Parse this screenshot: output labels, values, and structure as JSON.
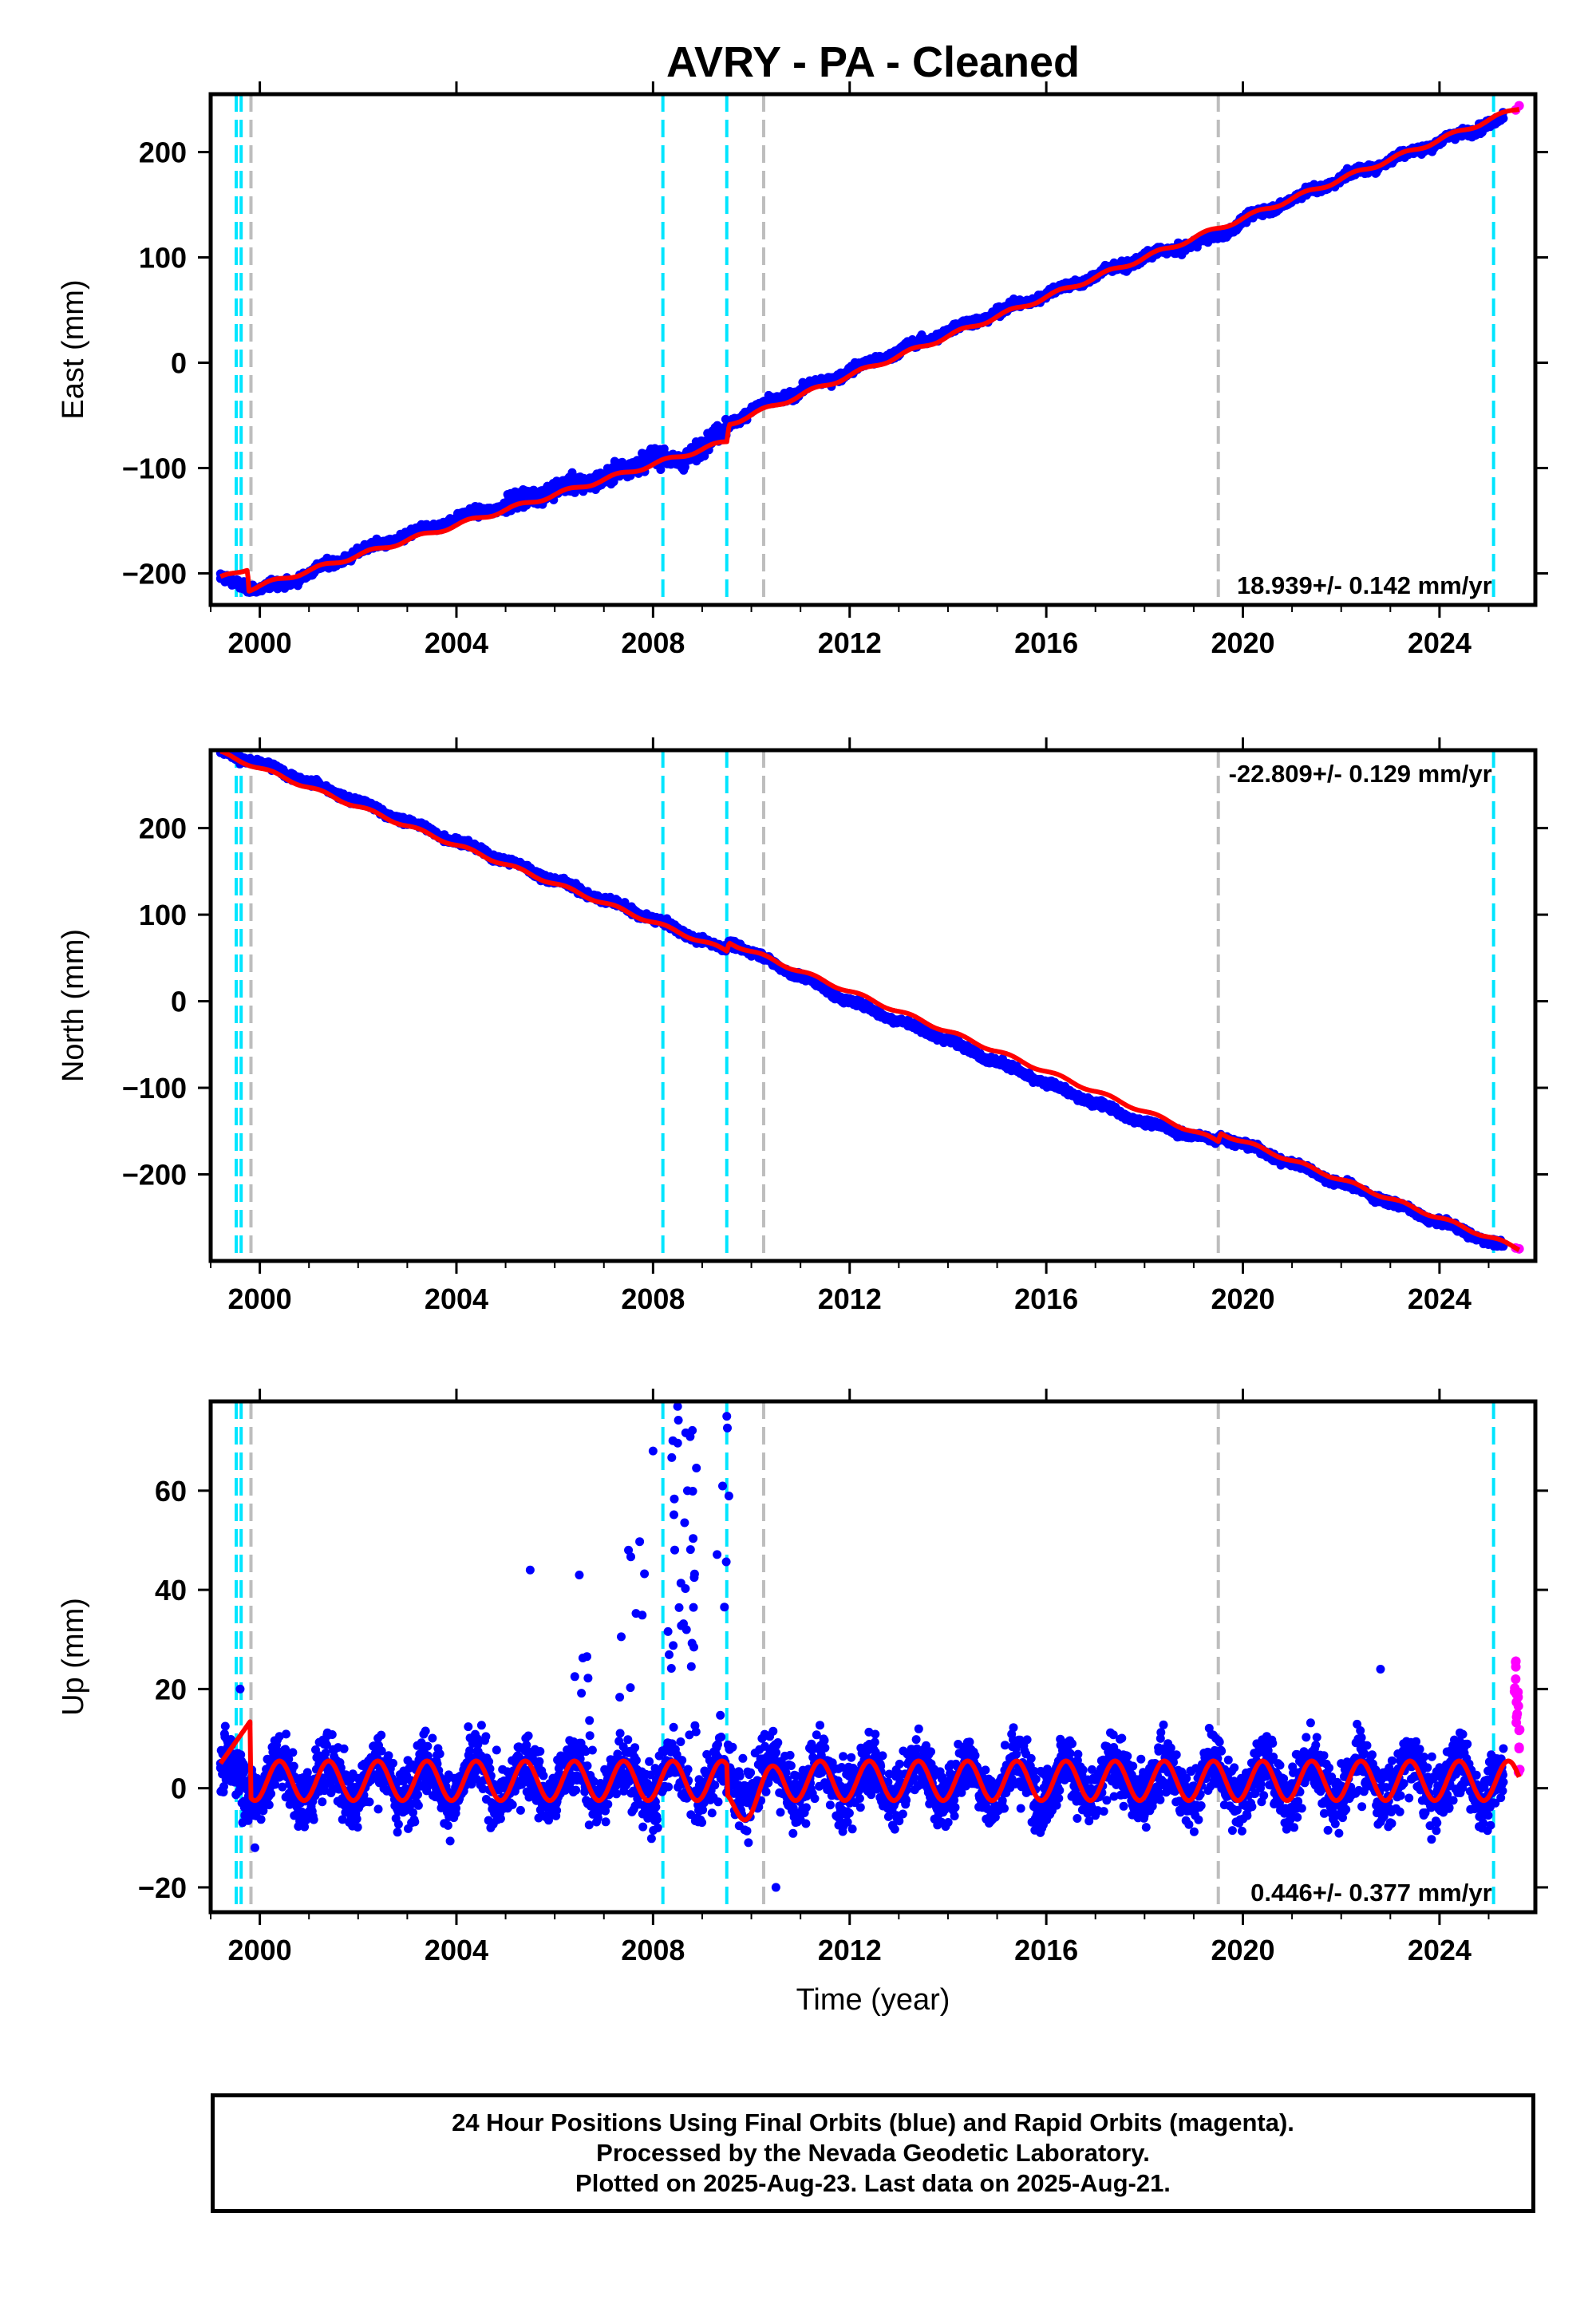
{
  "title": "AVRY  - PA - Cleaned",
  "colors": {
    "final_orbits": "#0000ff",
    "rapid_orbits": "#ff00ff",
    "model": "#ff0000",
    "equipment_change": "#00e5ff",
    "earthquake": "#bdbdbd"
  },
  "chart_data": [
    {
      "type": "scatter",
      "panel": "east",
      "ylabel": "East (mm)",
      "xlabel": "",
      "xlim": [
        1999.0,
        2025.95
      ],
      "ylim": [
        -230,
        255
      ],
      "x_ticks": [
        2000,
        2004,
        2008,
        2012,
        2016,
        2020,
        2024
      ],
      "y_ticks": [
        -200,
        -100,
        0,
        100,
        200
      ],
      "annotation": "18.939+/- 0.142 mm/yr",
      "annotation_position": "bottom-right",
      "grid": false,
      "series": [
        {
          "name": "Final Orbits",
          "color": "#0000ff",
          "x": [
            1999.2,
            2000.0,
            2000.5,
            2002.0,
            2004.0,
            2005.0,
            2006.0,
            2007.0,
            2008.0,
            2008.5,
            2009.3,
            2009.55,
            2010.0,
            2012.0,
            2014.0,
            2016.0,
            2018.0,
            2019.5,
            2020.0,
            2022.0,
            2024.0,
            2025.3
          ],
          "y": [
            -205,
            -215,
            -210,
            -180,
            -148,
            -135,
            -120,
            -110,
            -88,
            -95,
            -70,
            -58,
            -45,
            -8,
            30,
            65,
            100,
            120,
            135,
            175,
            210,
            232
          ]
        },
        {
          "name": "Rapid Orbits",
          "color": "#ff00ff",
          "x": [
            2025.55,
            2025.62
          ],
          "y": [
            240,
            244
          ]
        }
      ],
      "model": {
        "x": [
          1999.2,
          1999.75,
          1999.78,
          2009.5,
          2009.55,
          2025.62
        ],
        "y": [
          -205,
          -195,
          -215,
          -75,
          -58,
          242
        ]
      }
    },
    {
      "type": "scatter",
      "panel": "north",
      "ylabel": "North (mm)",
      "xlabel": "",
      "xlim": [
        1999.0,
        2025.95
      ],
      "ylim": [
        -300,
        290
      ],
      "x_ticks": [
        2000,
        2004,
        2008,
        2012,
        2016,
        2020,
        2024
      ],
      "y_ticks": [
        -200,
        -100,
        0,
        100,
        200
      ],
      "annotation": "-22.809+/- 0.129 mm/yr",
      "annotation_position": "top-right",
      "grid": false,
      "series": [
        {
          "name": "Final Orbits",
          "color": "#0000ff",
          "x": [
            1999.2,
            2000.0,
            2002.0,
            2004.0,
            2006.0,
            2008.0,
            2009.4,
            2009.6,
            2012.0,
            2014.0,
            2016.0,
            2018.0,
            2019.45,
            2019.55,
            2022.0,
            2024.0,
            2025.3
          ],
          "y": [
            287,
            275,
            230,
            185,
            140,
            95,
            60,
            68,
            0,
            -45,
            -95,
            -140,
            -162,
            -155,
            -210,
            -255,
            -283
          ]
        },
        {
          "name": "Rapid Orbits",
          "color": "#ff00ff",
          "x": [
            2025.55,
            2025.62
          ],
          "y": [
            -285,
            -286
          ]
        }
      ],
      "model": {
        "x": [
          1999.2,
          2009.5,
          2009.55,
          2019.5,
          2019.55,
          2025.62
        ],
        "y": [
          287,
          58,
          68,
          -162,
          -152,
          -286
        ]
      }
    },
    {
      "type": "scatter",
      "panel": "up",
      "ylabel": "Up (mm)",
      "xlabel": "Time (year)",
      "xlim": [
        1999.0,
        2025.95
      ],
      "ylim": [
        -25,
        78
      ],
      "x_ticks": [
        2000,
        2004,
        2008,
        2012,
        2016,
        2020,
        2024
      ],
      "y_ticks": [
        -20,
        0,
        20,
        40,
        60
      ],
      "annotation": "0.446+/- 0.377 mm/yr",
      "annotation_position": "bottom-right",
      "grid": false,
      "series": [
        {
          "name": "Final Orbits",
          "color": "#0000ff",
          "x": [
            1999.2,
            1999.6,
            1999.9,
            2002.0,
            2004.0,
            2005.5,
            2006.5,
            2007.5,
            2008.0,
            2008.5,
            2008.7,
            2009.2,
            2009.5,
            2010.5,
            2012.0,
            2014.0,
            2016.0,
            2018.0,
            2020.0,
            2022.0,
            2022.8,
            2024.0,
            2025.3
          ],
          "y": [
            5,
            20,
            -12,
            2,
            1,
            44,
            43,
            48,
            68,
            77,
            60,
            -5,
            75,
            -20,
            -3,
            0,
            1,
            0,
            2,
            5,
            24,
            3,
            8
          ]
        },
        {
          "name": "Rapid Orbits",
          "color": "#ff00ff",
          "x": [
            2025.55,
            2025.58,
            2025.62
          ],
          "y": [
            22,
            15,
            8
          ]
        }
      ],
      "model": {
        "amplitude_mm": 4,
        "period_years": 1
      }
    }
  ],
  "equipment_change_years": [
    1999.52,
    1999.62,
    2008.2,
    2009.5,
    2025.1
  ],
  "earthquake_years": [
    1999.82,
    2010.25,
    2019.5
  ],
  "footer": {
    "line1": "24 Hour Positions Using Final Orbits (blue) and Rapid Orbits (magenta).",
    "line2": "Processed by the Nevada Geodetic Laboratory.",
    "line3": "Plotted on 2025-Aug-23. Last data on 2025-Aug-21."
  }
}
